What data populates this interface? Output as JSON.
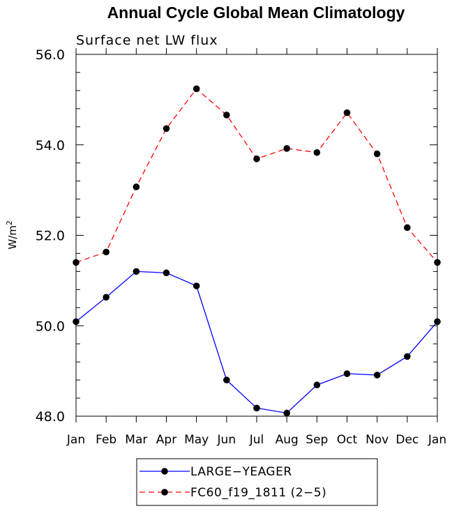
{
  "chart_data": {
    "type": "line",
    "title": "Annual Cycle Global Mean Climatology",
    "subtitle": "Surface net LW flux",
    "ylabel": "W/m",
    "ylabel_superscript": "2",
    "categories": [
      "Jan",
      "Feb",
      "Mar",
      "Apr",
      "May",
      "Jun",
      "Jul",
      "Aug",
      "Sep",
      "Oct",
      "Nov",
      "Dec",
      "Jan"
    ],
    "ylim": [
      48.0,
      56.0
    ],
    "yticks": [
      "48.0",
      "50.0",
      "52.0",
      "54.0",
      "56.0"
    ],
    "legend_position": "bottom",
    "series": [
      {
        "name": "LARGE−YEAGER",
        "color": "#0000ff",
        "dash": "solid",
        "values": [
          50.09,
          50.63,
          51.2,
          51.17,
          50.88,
          48.8,
          48.18,
          48.07,
          48.69,
          48.94,
          48.91,
          49.32,
          50.09
        ]
      },
      {
        "name": "FC60_f19_1811 (2−5)",
        "color": "#ff0000",
        "dash": "dashed",
        "values": [
          51.4,
          51.63,
          53.07,
          54.36,
          55.24,
          54.66,
          53.69,
          53.92,
          53.83,
          54.71,
          53.8,
          52.17,
          51.4
        ]
      }
    ]
  }
}
